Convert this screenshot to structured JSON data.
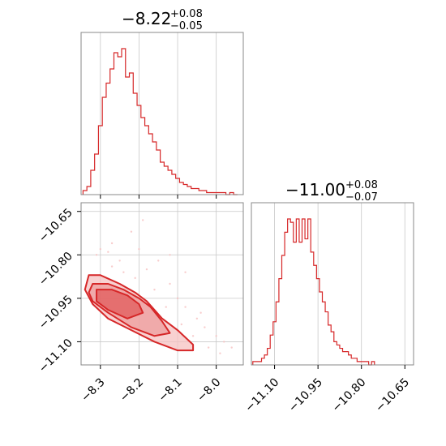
{
  "colors": {
    "accent": "#d62728",
    "fill_light": "#f6c1c1",
    "fill_mid": "#eb8f90",
    "grid": "#c8c8c8"
  },
  "chart_data": [
    {
      "type": "bar",
      "panel": "marginal-param-1",
      "title_main": "−8.22",
      "title_sup": "+0.08",
      "title_sub": "−0.05",
      "xlim": [
        -8.35,
        -7.93
      ],
      "x_ticks": [
        -8.3,
        -8.2,
        -8.1,
        -8.0
      ],
      "grid": true,
      "bins": [
        [
          -8.34,
          2
        ],
        [
          -8.33,
          4
        ],
        [
          -8.32,
          12
        ],
        [
          -8.31,
          20
        ],
        [
          -8.3,
          34
        ],
        [
          -8.29,
          48
        ],
        [
          -8.28,
          55
        ],
        [
          -8.27,
          62
        ],
        [
          -8.26,
          70
        ],
        [
          -8.25,
          68
        ],
        [
          -8.24,
          72
        ],
        [
          -8.23,
          58
        ],
        [
          -8.22,
          60
        ],
        [
          -8.21,
          50
        ],
        [
          -8.2,
          44
        ],
        [
          -8.19,
          38
        ],
        [
          -8.18,
          34
        ],
        [
          -8.17,
          30
        ],
        [
          -8.16,
          26
        ],
        [
          -8.15,
          22
        ],
        [
          -8.14,
          16
        ],
        [
          -8.13,
          14
        ],
        [
          -8.12,
          12
        ],
        [
          -8.11,
          10
        ],
        [
          -8.1,
          8
        ],
        [
          -8.09,
          6
        ],
        [
          -8.08,
          5
        ],
        [
          -8.07,
          4
        ],
        [
          -8.06,
          3
        ],
        [
          -8.05,
          3
        ],
        [
          -8.04,
          2
        ],
        [
          -8.03,
          2
        ],
        [
          -8.02,
          1
        ],
        [
          -8.01,
          1
        ],
        [
          -8.0,
          1
        ],
        [
          -7.99,
          1
        ],
        [
          -7.98,
          1
        ],
        [
          -7.97,
          0
        ],
        [
          -7.96,
          1
        ],
        [
          -7.95,
          0
        ]
      ]
    },
    {
      "type": "scatter",
      "panel": "joint",
      "xlim": [
        -8.35,
        -7.93
      ],
      "ylim": [
        -11.18,
        -10.62
      ],
      "x_ticks": [
        "−8.3",
        "−8.2",
        "−8.1",
        "−8.0"
      ],
      "y_ticks": [
        "−10.65",
        "−10.80",
        "−10.95",
        "−11.10"
      ],
      "x_tick_values": [
        -8.3,
        -8.2,
        -8.1,
        -8.0
      ],
      "y_tick_values": [
        -10.65,
        -10.8,
        -10.95,
        -11.1
      ],
      "grid": true,
      "contours": [
        {
          "level": "outer",
          "points": [
            [
              -8.33,
              -10.87
            ],
            [
              -8.3,
              -10.87
            ],
            [
              -8.25,
              -10.9
            ],
            [
              -8.21,
              -10.93
            ],
            [
              -8.18,
              -10.96
            ],
            [
              -8.14,
              -11.02
            ],
            [
              -8.1,
              -11.06
            ],
            [
              -8.06,
              -11.11
            ],
            [
              -8.06,
              -11.13
            ],
            [
              -8.1,
              -11.13
            ],
            [
              -8.16,
              -11.1
            ],
            [
              -8.22,
              -11.06
            ],
            [
              -8.28,
              -11.02
            ],
            [
              -8.32,
              -10.97
            ],
            [
              -8.34,
              -10.92
            ]
          ]
        },
        {
          "level": "mid",
          "points": [
            [
              -8.32,
              -10.9
            ],
            [
              -8.28,
              -10.9
            ],
            [
              -8.24,
              -10.92
            ],
            [
              -8.2,
              -10.95
            ],
            [
              -8.17,
              -10.98
            ],
            [
              -8.14,
              -11.03
            ],
            [
              -8.12,
              -11.07
            ],
            [
              -8.16,
              -11.08
            ],
            [
              -8.22,
              -11.05
            ],
            [
              -8.28,
              -11.0
            ],
            [
              -8.32,
              -10.96
            ],
            [
              -8.33,
              -10.93
            ]
          ]
        },
        {
          "level": "inner",
          "points": [
            [
              -8.31,
              -10.92
            ],
            [
              -8.27,
              -10.92
            ],
            [
              -8.23,
              -10.94
            ],
            [
              -8.2,
              -10.97
            ],
            [
              -8.19,
              -11.0
            ],
            [
              -8.23,
              -11.02
            ],
            [
              -8.28,
              -10.99
            ],
            [
              -8.31,
              -10.96
            ]
          ]
        }
      ],
      "scatter_sample": [
        [
          -8.3,
          -10.78
        ],
        [
          -8.27,
          -10.76
        ],
        [
          -8.25,
          -10.82
        ],
        [
          -8.22,
          -10.72
        ],
        [
          -8.2,
          -10.78
        ],
        [
          -8.18,
          -10.85
        ],
        [
          -8.15,
          -10.82
        ],
        [
          -8.12,
          -10.9
        ],
        [
          -8.1,
          -10.95
        ],
        [
          -8.08,
          -10.98
        ],
        [
          -8.05,
          -11.02
        ],
        [
          -8.03,
          -11.05
        ],
        [
          -8.0,
          -11.08
        ],
        [
          -7.98,
          -11.1
        ],
        [
          -7.96,
          -11.12
        ],
        [
          -8.27,
          -10.84
        ],
        [
          -8.24,
          -10.86
        ],
        [
          -8.21,
          -10.88
        ],
        [
          -8.16,
          -10.92
        ],
        [
          -8.13,
          -10.98
        ],
        [
          -8.09,
          -11.04
        ],
        [
          -8.06,
          -11.08
        ],
        [
          -8.02,
          -11.12
        ],
        [
          -7.99,
          -11.14
        ],
        [
          -8.31,
          -10.8
        ],
        [
          -8.28,
          -10.79
        ],
        [
          -8.19,
          -10.68
        ],
        [
          -8.12,
          -10.8
        ],
        [
          -8.08,
          -10.86
        ],
        [
          -8.04,
          -11.0
        ]
      ]
    },
    {
      "type": "bar",
      "panel": "marginal-param-2",
      "title_main": "−11.00",
      "title_sup": "+0.08",
      "title_sub": "−0.07",
      "xlim": [
        -11.18,
        -10.62
      ],
      "x_ticks": [
        "−11.10",
        "−10.95",
        "−10.80",
        "−10.65"
      ],
      "x_tick_values": [
        -11.1,
        -10.95,
        -10.8,
        -10.65
      ],
      "grid": true,
      "bins": [
        [
          -11.17,
          1
        ],
        [
          -11.16,
          1
        ],
        [
          -11.15,
          1
        ],
        [
          -11.14,
          2
        ],
        [
          -11.13,
          3
        ],
        [
          -11.12,
          5
        ],
        [
          -11.11,
          9
        ],
        [
          -11.1,
          13
        ],
        [
          -11.09,
          19
        ],
        [
          -11.08,
          26
        ],
        [
          -11.07,
          33
        ],
        [
          -11.06,
          40
        ],
        [
          -11.05,
          44
        ],
        [
          -11.04,
          43
        ],
        [
          -11.03,
          37
        ],
        [
          -11.02,
          44
        ],
        [
          -11.01,
          37
        ],
        [
          -11.0,
          44
        ],
        [
          -10.99,
          38
        ],
        [
          -10.98,
          44
        ],
        [
          -10.97,
          34
        ],
        [
          -10.96,
          30
        ],
        [
          -10.95,
          26
        ],
        [
          -10.94,
          22
        ],
        [
          -10.93,
          19
        ],
        [
          -10.92,
          16
        ],
        [
          -10.91,
          12
        ],
        [
          -10.9,
          10
        ],
        [
          -10.89,
          7
        ],
        [
          -10.88,
          6
        ],
        [
          -10.87,
          5
        ],
        [
          -10.86,
          4
        ],
        [
          -10.85,
          4
        ],
        [
          -10.84,
          3
        ],
        [
          -10.83,
          2
        ],
        [
          -10.82,
          2
        ],
        [
          -10.81,
          1
        ],
        [
          -10.8,
          1
        ],
        [
          -10.79,
          1
        ],
        [
          -10.78,
          1
        ],
        [
          -10.77,
          0
        ],
        [
          -10.76,
          1
        ]
      ]
    }
  ]
}
